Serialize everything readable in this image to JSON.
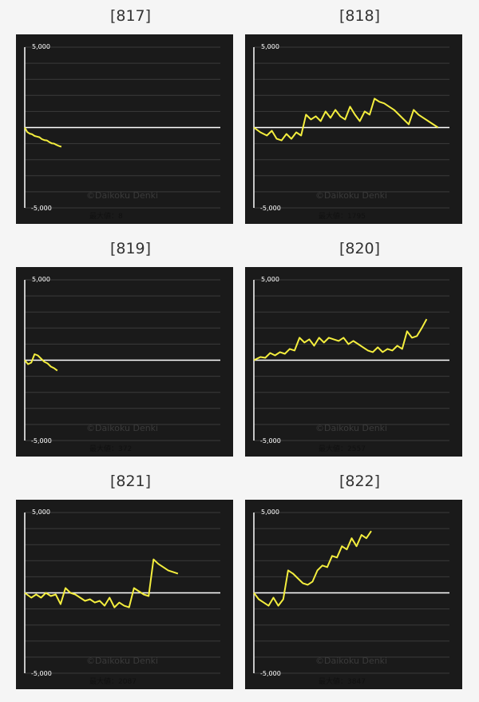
{
  "watermark": "©Daikoku Denki",
  "max_label_prefix": "最大値：",
  "colors": {
    "line": "#f4ee3e",
    "zero_line": "#ffffff",
    "grid": "#3a3a3a",
    "panel_bg": "#1a1a1a"
  },
  "chart_data": [
    {
      "type": "line",
      "title": "[817]",
      "ylim": [
        -5000,
        5000
      ],
      "y_ticks": [
        "5,000",
        "-5,000"
      ],
      "grid": true,
      "max_value": 8,
      "x": [
        0,
        3,
        6,
        9,
        12,
        15,
        18,
        21,
        24,
        27,
        30,
        33,
        36,
        39,
        42,
        45
      ],
      "values": [
        0,
        -280,
        -380,
        -420,
        -520,
        -560,
        -600,
        -720,
        -780,
        -800,
        -900,
        -980,
        -1000,
        -1080,
        -1150,
        -1200
      ]
    },
    {
      "type": "line",
      "title": "[818]",
      "ylim": [
        -5000,
        5000
      ],
      "y_ticks": [
        "5,000",
        "-5,000"
      ],
      "grid": true,
      "max_value": 1795,
      "x": [
        0,
        8,
        16,
        22,
        28,
        34,
        40,
        46,
        52,
        58,
        64,
        70,
        76,
        82,
        88,
        94,
        100,
        106,
        112,
        118,
        124,
        130,
        136,
        142,
        148,
        154,
        160,
        166,
        172,
        178,
        184,
        190,
        196,
        202,
        208,
        214,
        220,
        226
      ],
      "values": [
        0,
        -300,
        -500,
        -200,
        -700,
        -800,
        -400,
        -700,
        -300,
        -500,
        800,
        500,
        700,
        400,
        1000,
        600,
        1100,
        700,
        500,
        1300,
        800,
        400,
        1000,
        800,
        1795,
        1600,
        1500,
        1300,
        1100,
        800,
        500,
        200,
        1100,
        800,
        600,
        400,
        200,
        0
      ]
    },
    {
      "type": "line",
      "title": "[819]",
      "ylim": [
        -5000,
        5000
      ],
      "y_ticks": [
        "5,000",
        "-5,000"
      ],
      "grid": true,
      "max_value": 372,
      "x": [
        0,
        4,
        8,
        12,
        16,
        20,
        24,
        28,
        32,
        36,
        40
      ],
      "values": [
        0,
        -250,
        -150,
        372,
        300,
        100,
        -100,
        -200,
        -400,
        -500,
        -650
      ]
    },
    {
      "type": "line",
      "title": "[820]",
      "ylim": [
        -5000,
        5000
      ],
      "y_ticks": [
        "5,000",
        "-5,000"
      ],
      "grid": true,
      "max_value": 2557,
      "x": [
        0,
        8,
        14,
        20,
        26,
        32,
        38,
        44,
        50,
        56,
        62,
        68,
        74,
        80,
        86,
        92,
        98,
        104,
        110,
        116,
        122,
        128,
        134,
        140,
        146,
        152,
        158,
        164,
        170,
        176,
        182,
        188,
        194,
        200,
        206,
        212
      ],
      "values": [
        0,
        200,
        150,
        450,
        300,
        500,
        400,
        700,
        600,
        1400,
        1100,
        1300,
        900,
        1400,
        1100,
        1400,
        1300,
        1200,
        1400,
        1000,
        1200,
        1000,
        800,
        600,
        500,
        800,
        500,
        700,
        600,
        900,
        700,
        1800,
        1400,
        1500,
        2000,
        2557
      ]
    },
    {
      "type": "line",
      "title": "[821]",
      "ylim": [
        -5000,
        5000
      ],
      "y_ticks": [
        "5,000",
        "-5,000"
      ],
      "grid": true,
      "max_value": 2087,
      "x": [
        0,
        8,
        14,
        20,
        26,
        32,
        38,
        44,
        50,
        56,
        62,
        68,
        74,
        80,
        86,
        92,
        98,
        104,
        110,
        116,
        122,
        128,
        134,
        140,
        146,
        152,
        158,
        164,
        170,
        176,
        182,
        188
      ],
      "values": [
        0,
        -300,
        -100,
        -300,
        0,
        -200,
        -100,
        -700,
        300,
        0,
        -100,
        -300,
        -500,
        -400,
        -600,
        -500,
        -800,
        -300,
        -900,
        -600,
        -800,
        -900,
        300,
        100,
        -100,
        -200,
        2087,
        1800,
        1600,
        1400,
        1300,
        1200
      ]
    },
    {
      "type": "line",
      "title": "[822]",
      "ylim": [
        -5000,
        5000
      ],
      "y_ticks": [
        "5,000",
        "-5,000"
      ],
      "grid": true,
      "max_value": 3847,
      "x": [
        0,
        6,
        12,
        18,
        24,
        30,
        36,
        42,
        48,
        54,
        60,
        66,
        72,
        78,
        84,
        90,
        96,
        102,
        108,
        114,
        120,
        126,
        132,
        138,
        144
      ],
      "values": [
        0,
        -400,
        -600,
        -800,
        -300,
        -800,
        -400,
        1400,
        1200,
        900,
        600,
        500,
        700,
        1400,
        1700,
        1600,
        2300,
        2200,
        2900,
        2700,
        3400,
        2900,
        3600,
        3400,
        3847
      ]
    }
  ]
}
